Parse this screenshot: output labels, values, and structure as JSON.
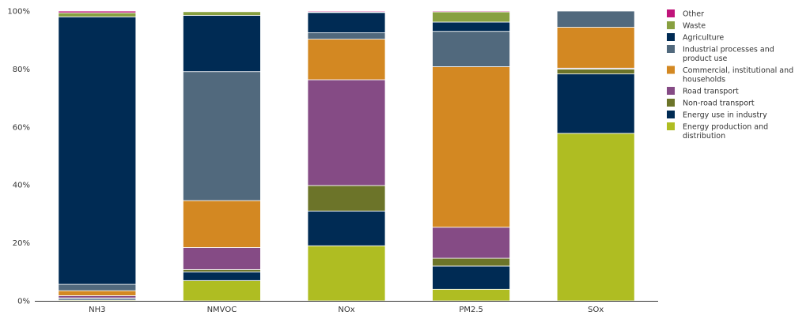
{
  "chart_data": {
    "type": "bar",
    "stacked": true,
    "title": "",
    "xlabel": "",
    "ylabel": "",
    "ylim": [
      0,
      100
    ],
    "yticks": [
      {
        "value": 0,
        "label": "0%"
      },
      {
        "value": 20,
        "label": "20%"
      },
      {
        "value": 40,
        "label": "40%"
      },
      {
        "value": 60,
        "label": "60%"
      },
      {
        "value": 80,
        "label": "80%"
      },
      {
        "value": 100,
        "label": "100%"
      }
    ],
    "grid": false,
    "legend_position": "right",
    "categories": [
      "NH3",
      "NMVOC",
      "NOx",
      "PM2.5",
      "SOx"
    ],
    "series": [
      {
        "name": "Energy production and distribution",
        "color": "#afbd22",
        "values": [
          0.3,
          7.0,
          19.0,
          4.0,
          57.8
        ]
      },
      {
        "name": "Energy use in industry",
        "color": "#002b54",
        "values": [
          0.5,
          3.0,
          12.0,
          8.0,
          20.5
        ]
      },
      {
        "name": "Non-road transport",
        "color": "#6c7429",
        "values": [
          0.2,
          0.8,
          8.8,
          2.7,
          1.7
        ]
      },
      {
        "name": "Road transport",
        "color": "#854b85",
        "values": [
          0.8,
          7.6,
          36.5,
          10.7,
          0.3
        ]
      },
      {
        "name": "Commercial, institutional and households",
        "color": "#d38822",
        "values": [
          1.7,
          16.2,
          14.0,
          55.4,
          14.1
        ]
      },
      {
        "name": "Industrial processes and product use",
        "color": "#51697d",
        "values": [
          2.2,
          44.5,
          2.2,
          12.2,
          5.6
        ]
      },
      {
        "name": "Agriculture",
        "color": "#002b54",
        "values": [
          92.3,
          19.4,
          7.0,
          3.2,
          0.0
        ]
      },
      {
        "name": "Waste",
        "color": "#88a040",
        "values": [
          1.4,
          1.3,
          0.2,
          3.5,
          0.0
        ]
      },
      {
        "name": "Other",
        "color": "#c0147a",
        "values": [
          0.6,
          0.2,
          0.3,
          0.3,
          0.0
        ]
      }
    ],
    "legend_order": [
      "Other",
      "Waste",
      "Agriculture",
      "Industrial processes and product use",
      "Commercial, institutional and households",
      "Road transport",
      "Non-road transport",
      "Energy use in industry",
      "Energy production and distribution"
    ]
  }
}
